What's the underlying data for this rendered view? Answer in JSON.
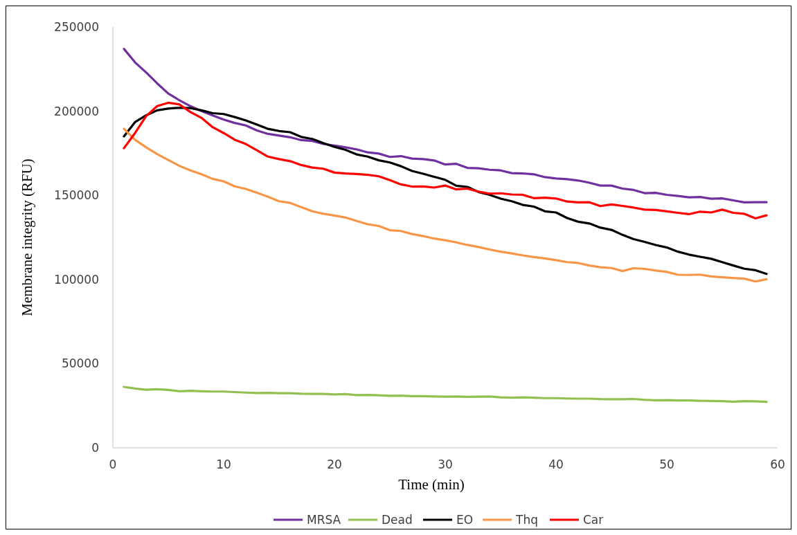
{
  "chart_data": {
    "type": "line",
    "xlabel": "Time (min)",
    "ylabel": "Membrane integrity (RFU)",
    "x": [
      1,
      2,
      3,
      4,
      5,
      6,
      7,
      8,
      9,
      10,
      11,
      12,
      13,
      14,
      15,
      16,
      17,
      18,
      19,
      20,
      21,
      22,
      23,
      24,
      25,
      26,
      27,
      28,
      29,
      30,
      31,
      32,
      33,
      34,
      35,
      36,
      37,
      38,
      39,
      40,
      41,
      42,
      43,
      44,
      45,
      46,
      47,
      48,
      49,
      50,
      51,
      52,
      53,
      54,
      55,
      56,
      57,
      58,
      59
    ],
    "xlim": [
      0,
      60
    ],
    "xticks": [
      0,
      10,
      20,
      30,
      40,
      50,
      60
    ],
    "ylim": [
      0,
      250000
    ],
    "yticks": [
      0,
      50000,
      100000,
      150000,
      200000,
      250000
    ],
    "grid": false,
    "legend": "bottom",
    "marker": "none",
    "line_style": "solid",
    "series": [
      {
        "name": "MRSA",
        "color": "#7030a0",
        "values": [
          237000,
          229000,
          223000,
          216500,
          210500,
          206500,
          203000,
          200000,
          197500,
          195000,
          193000,
          191500,
          188500,
          186500,
          185500,
          184500,
          182800,
          182300,
          180500,
          179500,
          178500,
          177300,
          175500,
          174800,
          172800,
          173300,
          171800,
          171500,
          170700,
          168300,
          168700,
          166300,
          166100,
          165200,
          164800,
          163200,
          163000,
          162500,
          160800,
          160000,
          159600,
          158800,
          157500,
          155800,
          155800,
          154000,
          153200,
          151300,
          151500,
          150300,
          149600,
          148800,
          149000,
          148000,
          148200,
          147000,
          145800,
          145900,
          145900
        ]
      },
      {
        "name": "Dead",
        "color": "#92c050",
        "values": [
          36200,
          35200,
          34500,
          34800,
          34400,
          33600,
          33900,
          33600,
          33400,
          33400,
          33100,
          32800,
          32500,
          32600,
          32400,
          32400,
          32100,
          32000,
          32000,
          31700,
          31900,
          31300,
          31400,
          31200,
          30900,
          31000,
          30700,
          30700,
          30500,
          30400,
          30500,
          30300,
          30400,
          30500,
          30000,
          29800,
          30000,
          29800,
          29500,
          29500,
          29300,
          29200,
          29200,
          28900,
          28800,
          28800,
          29000,
          28500,
          28200,
          28300,
          28100,
          28100,
          27900,
          27800,
          27700,
          27400,
          27700,
          27600,
          27300
        ]
      },
      {
        "name": "EO",
        "color": "#000000",
        "values": [
          185000,
          193500,
          197500,
          200500,
          201500,
          202000,
          201800,
          200500,
          198800,
          198300,
          196500,
          194500,
          192000,
          189500,
          188200,
          187500,
          184700,
          183500,
          181000,
          178800,
          177000,
          174300,
          173000,
          170800,
          169500,
          167300,
          164500,
          162800,
          161000,
          159200,
          155700,
          155000,
          152000,
          150300,
          148000,
          146500,
          144300,
          143300,
          140500,
          139800,
          136500,
          134300,
          133300,
          130800,
          129500,
          126500,
          124000,
          122300,
          120500,
          119000,
          116500,
          114800,
          113500,
          112300,
          110300,
          108300,
          106400,
          105500,
          103300
        ]
      },
      {
        "name": "Thq",
        "color": "#f79646",
        "values": [
          189500,
          183000,
          178500,
          174500,
          171000,
          167500,
          164800,
          162500,
          159800,
          158300,
          155300,
          153800,
          151500,
          149200,
          146500,
          145500,
          143000,
          140500,
          139000,
          138000,
          136800,
          134800,
          132800,
          131800,
          129300,
          128800,
          127000,
          125800,
          124300,
          123300,
          122000,
          120500,
          119300,
          117800,
          116500,
          115500,
          114300,
          113300,
          112500,
          111500,
          110300,
          109800,
          108300,
          107300,
          106800,
          105000,
          106700,
          106300,
          105300,
          104500,
          102800,
          102700,
          102900,
          101800,
          101300,
          100900,
          100500,
          98800,
          100200
        ]
      },
      {
        "name": "Car",
        "color": "#ff0000",
        "values": [
          178000,
          187000,
          197000,
          203000,
          205000,
          204000,
          199500,
          196000,
          190500,
          187000,
          183000,
          180500,
          176800,
          173000,
          171500,
          170300,
          168000,
          166500,
          165800,
          163500,
          163000,
          162700,
          162200,
          161300,
          159000,
          156500,
          155200,
          155300,
          154600,
          155800,
          153500,
          154000,
          152200,
          151000,
          151200,
          150500,
          150300,
          148300,
          148600,
          148100,
          146300,
          145800,
          145900,
          143600,
          144600,
          143700,
          142700,
          141500,
          141300,
          140500,
          139600,
          138800,
          140300,
          139800,
          141500,
          139600,
          139000,
          136300,
          138100
        ]
      }
    ]
  }
}
